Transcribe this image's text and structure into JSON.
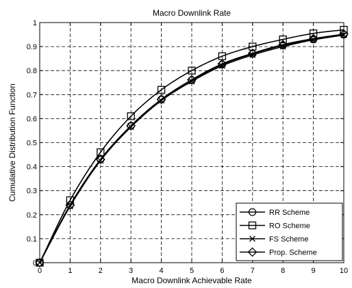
{
  "chart_data": {
    "type": "line",
    "title": "Macro Downlink Rate",
    "xlabel": "Macro Downlink Achievable Rate",
    "ylabel": "Cumulative Distribution Function",
    "xlim": [
      0,
      10
    ],
    "ylim": [
      0,
      1
    ],
    "xticks": [
      "0",
      "1",
      "2",
      "3",
      "4",
      "5",
      "6",
      "7",
      "8",
      "9",
      "10"
    ],
    "yticks": [
      "0",
      "0.1",
      "0.2",
      "0.3",
      "0.4",
      "0.5",
      "0.6",
      "0.7",
      "0.8",
      "0.9",
      "1"
    ],
    "grid": true,
    "legend_position": "bottom-right",
    "x": [
      0,
      1,
      2,
      3,
      4,
      5,
      6,
      7,
      8,
      9,
      10
    ],
    "series": [
      {
        "name": "RR Scheme",
        "marker": "circle",
        "values": [
          0,
          0.24,
          0.43,
          0.57,
          0.68,
          0.76,
          0.825,
          0.87,
          0.905,
          0.93,
          0.95
        ]
      },
      {
        "name": "RO Scheme",
        "marker": "square",
        "values": [
          0,
          0.26,
          0.46,
          0.61,
          0.72,
          0.8,
          0.86,
          0.9,
          0.93,
          0.955,
          0.97
        ]
      },
      {
        "name": "FS Scheme",
        "marker": "x",
        "values": [
          0,
          0.235,
          0.425,
          0.565,
          0.675,
          0.755,
          0.82,
          0.865,
          0.9,
          0.928,
          0.948
        ]
      },
      {
        "name": "Prop. Scheme",
        "marker": "diamond",
        "values": [
          0,
          0.24,
          0.43,
          0.57,
          0.68,
          0.762,
          0.828,
          0.872,
          0.908,
          0.933,
          0.952
        ]
      }
    ]
  }
}
